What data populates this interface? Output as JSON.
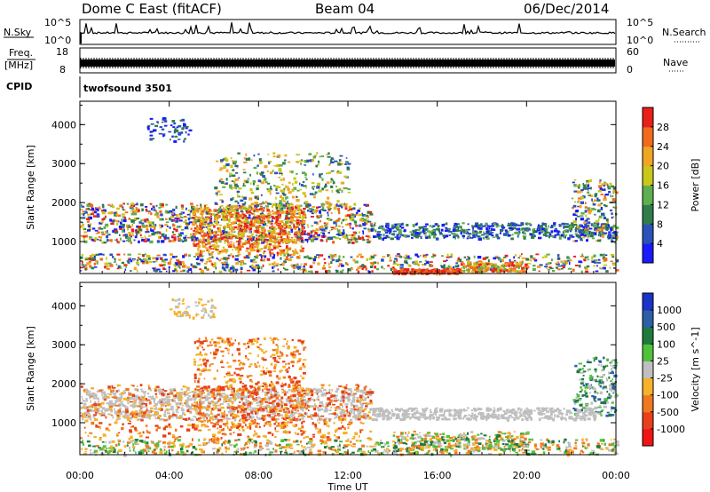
{
  "header": {
    "station": "Dome C East (fitACF)",
    "beam": "Beam 04",
    "date": "06/Dec/2014"
  },
  "strip_sky": {
    "left_label": "N.Sky",
    "right_label": "N.Search",
    "left_ticks": [
      "10^5",
      "10^0"
    ],
    "right_ticks": [
      "10^5",
      "10^0"
    ]
  },
  "strip_freq": {
    "left_label_top": "Freq.",
    "left_label_unit": "[MHz]",
    "left_ticks": [
      "18",
      "8"
    ],
    "right_label": "Nave",
    "right_ticks": [
      "60",
      "0"
    ]
  },
  "strip_cpid": {
    "label": "CPID",
    "value": "twofsound 3501"
  },
  "chart_data": [
    {
      "type": "heatmap",
      "panel": "power",
      "ylabel": "Slant Range [km]",
      "xlabel": "Time UT",
      "x_ticks": [
        "00:00",
        "04:00",
        "08:00",
        "12:00",
        "16:00",
        "20:00",
        "00:00"
      ],
      "y_ticks": [
        1000,
        2000,
        3000,
        4000
      ],
      "xlim_hours": [
        0,
        24
      ],
      "ylim_km": [
        180,
        4600
      ],
      "colorbar": {
        "label": "Power [dB]",
        "ticks": [
          "4",
          "8",
          "12",
          "16",
          "20",
          "24",
          "28"
        ],
        "colors": [
          "#1a1aff",
          "#2a52b8",
          "#2e7d4a",
          "#5fae4f",
          "#c9c81a",
          "#f1a524",
          "#f16b1d",
          "#e8201a"
        ]
      }
    },
    {
      "type": "heatmap",
      "panel": "velocity",
      "ylabel": "Slant Range [km]",
      "xlabel": "Time UT",
      "x_ticks": [
        "00:00",
        "04:00",
        "08:00",
        "12:00",
        "16:00",
        "20:00",
        "00:00"
      ],
      "y_ticks": [
        1000,
        2000,
        3000,
        4000
      ],
      "xlim_hours": [
        0,
        24
      ],
      "ylim_km": [
        180,
        4600
      ],
      "colorbar": {
        "label": "Velocity [m s^-1]",
        "ticks": [
          "1000",
          "500",
          "100",
          "25",
          "-25",
          "-100",
          "-500",
          "-1000"
        ],
        "colors": [
          "#1a33c8",
          "#2d5fa6",
          "#1f7a3e",
          "#4fc23a",
          "#bfbfbf",
          "#f5b22a",
          "#f07820",
          "#e8401a",
          "#f01515"
        ]
      }
    }
  ]
}
